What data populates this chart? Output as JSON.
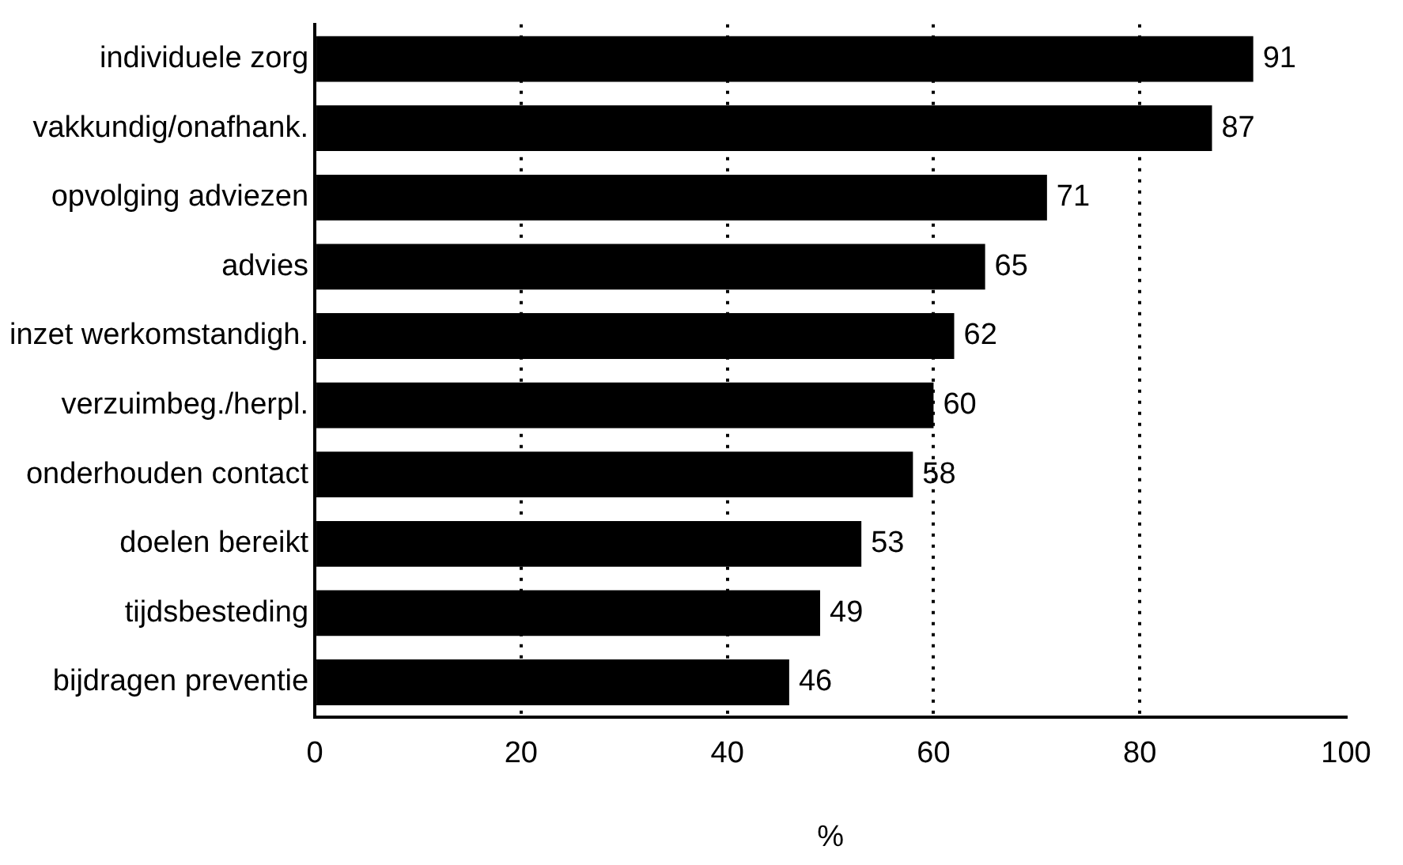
{
  "chart_data": {
    "type": "bar",
    "orientation": "horizontal",
    "xlabel": "%",
    "categories": [
      "individuele zorg",
      "vakkundig/onafhank.",
      "opvolging adviezen",
      "advies",
      "inzet werkomstandigh.",
      "verzuimbeg./herpl.",
      "onderhouden contact",
      "doelen bereikt",
      "tijdsbesteding",
      "bijdragen preventie"
    ],
    "values": [
      91,
      87,
      71,
      65,
      62,
      60,
      58,
      53,
      49,
      46
    ],
    "color": "#000000",
    "xlim": [
      0,
      100
    ],
    "xticks": [
      0,
      20,
      40,
      60,
      80,
      100
    ],
    "grid": "x",
    "line_style": "dotted",
    "data_labels": true,
    "legend": false
  }
}
